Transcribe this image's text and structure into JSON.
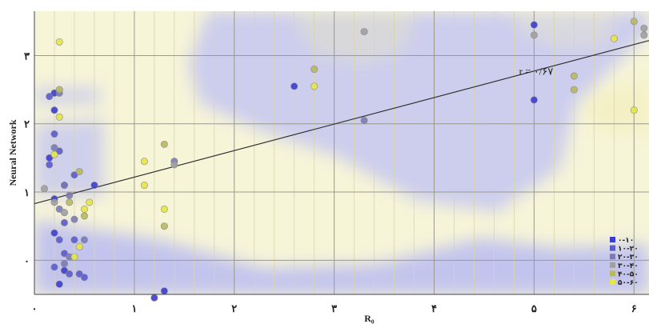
{
  "chart_data": {
    "type": "scatter",
    "xlabel": "R₀",
    "ylabel": "Neural Network",
    "xlim": [
      0,
      6.15
    ],
    "ylim": [
      -0.5,
      3.65
    ],
    "x_ticks": [
      {
        "value": 0,
        "label": "۰"
      },
      {
        "value": 1,
        "label": "۱"
      },
      {
        "value": 2,
        "label": "۲"
      },
      {
        "value": 3,
        "label": "۳"
      },
      {
        "value": 4,
        "label": "۴"
      },
      {
        "value": 5,
        "label": "۵"
      },
      {
        "value": 6,
        "label": "۶"
      }
    ],
    "y_ticks": [
      {
        "value": 0,
        "label": "۰"
      },
      {
        "value": 1,
        "label": "۱"
      },
      {
        "value": 2,
        "label": "۲"
      },
      {
        "value": 3,
        "label": "۳"
      }
    ],
    "trendline": {
      "x": [
        0,
        6.15
      ],
      "y": [
        0.83,
        3.22
      ],
      "label": "r = ۰/۶۷"
    },
    "legend_position": "bottom-right",
    "series": [
      {
        "name": "۰-۱۰",
        "color": "#3c3ccf",
        "points": [
          [
            0.2,
            2.2
          ],
          [
            0.2,
            2.45
          ],
          [
            0.15,
            1.5
          ],
          [
            0.6,
            1.1
          ],
          [
            0.3,
            1.1
          ],
          [
            0.2,
            0.9
          ],
          [
            0.2,
            0.4
          ],
          [
            0.3,
            -0.15
          ],
          [
            0.25,
            -0.35
          ],
          [
            1.3,
            -0.45
          ],
          [
            1.2,
            -0.55
          ],
          [
            2.6,
            2.55
          ],
          [
            5.0,
            3.45
          ],
          [
            5.0,
            2.35
          ]
        ]
      },
      {
        "name": "۱۰-۲۰",
        "color": "#5a5ad0",
        "points": [
          [
            0.15,
            2.4
          ],
          [
            0.2,
            1.85
          ],
          [
            0.25,
            1.6
          ],
          [
            0.15,
            1.4
          ],
          [
            0.4,
            1.25
          ],
          [
            0.3,
            0.55
          ],
          [
            0.25,
            0.3
          ],
          [
            0.4,
            0.3
          ],
          [
            0.3,
            0.1
          ],
          [
            0.2,
            -0.1
          ],
          [
            0.35,
            -0.2
          ],
          [
            0.45,
            -0.2
          ],
          [
            0.5,
            -0.25
          ]
        ]
      },
      {
        "name": "۲۰-۳۰",
        "color": "#7a7ab8",
        "points": [
          [
            0.25,
            2.45
          ],
          [
            0.2,
            1.65
          ],
          [
            0.3,
            1.1
          ],
          [
            0.35,
            0.95
          ],
          [
            0.25,
            0.75
          ],
          [
            0.4,
            0.6
          ],
          [
            0.5,
            0.3
          ],
          [
            0.35,
            0.05
          ],
          [
            0.3,
            -0.05
          ],
          [
            3.3,
            2.05
          ],
          [
            1.4,
            1.45
          ]
        ]
      },
      {
        "name": "۳۰-۴۰",
        "color": "#a0a0a0",
        "points": [
          [
            0.1,
            1.05
          ],
          [
            0.2,
            0.85
          ],
          [
            0.3,
            0.7
          ],
          [
            3.3,
            3.35
          ],
          [
            5.0,
            3.3
          ],
          [
            6.1,
            3.4
          ],
          [
            6.1,
            3.3
          ],
          [
            1.4,
            1.4
          ]
        ]
      },
      {
        "name": "۴۰-۵۰",
        "color": "#b8b860",
        "points": [
          [
            0.25,
            2.5
          ],
          [
            0.45,
            1.3
          ],
          [
            0.35,
            0.85
          ],
          [
            0.5,
            0.65
          ],
          [
            1.3,
            1.7
          ],
          [
            1.3,
            0.5
          ],
          [
            2.8,
            2.8
          ],
          [
            5.4,
            2.7
          ],
          [
            5.4,
            2.5
          ],
          [
            6.0,
            3.5
          ]
        ]
      },
      {
        "name": "۵۰-۶۰",
        "color": "#e6e645",
        "points": [
          [
            0.25,
            3.2
          ],
          [
            0.25,
            2.1
          ],
          [
            0.2,
            1.55
          ],
          [
            0.55,
            0.85
          ],
          [
            0.5,
            0.75
          ],
          [
            0.45,
            0.2
          ],
          [
            0.4,
            0.05
          ],
          [
            1.1,
            1.45
          ],
          [
            1.1,
            1.1
          ],
          [
            1.3,
            0.75
          ],
          [
            2.8,
            2.55
          ],
          [
            5.8,
            3.25
          ],
          [
            6.0,
            2.2
          ]
        ]
      }
    ]
  }
}
